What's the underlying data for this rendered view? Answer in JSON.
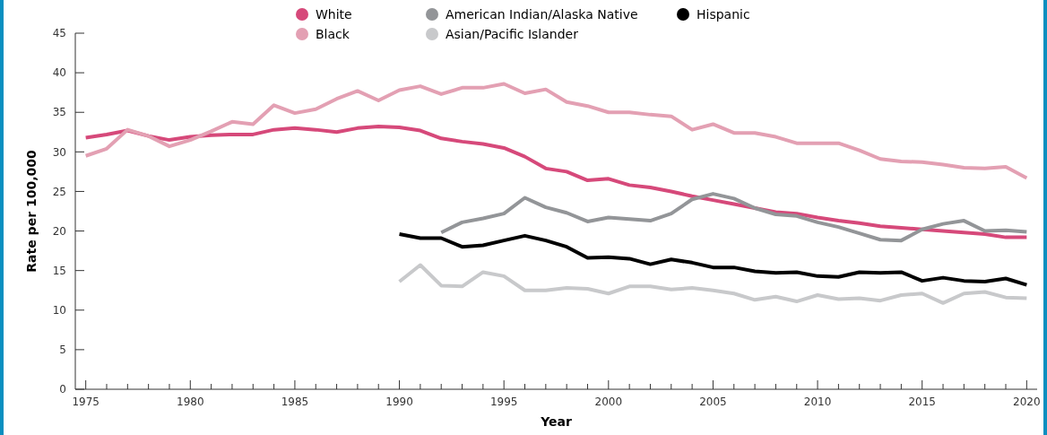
{
  "chart_data": {
    "type": "line",
    "xlabel": "Year",
    "ylabel": "Rate per 100,000",
    "x": [
      1975,
      1976,
      1977,
      1978,
      1979,
      1980,
      1981,
      1982,
      1983,
      1984,
      1985,
      1986,
      1987,
      1988,
      1989,
      1990,
      1991,
      1992,
      1993,
      1994,
      1995,
      1996,
      1997,
      1998,
      1999,
      2000,
      2001,
      2002,
      2003,
      2004,
      2005,
      2006,
      2007,
      2008,
      2009,
      2010,
      2011,
      2012,
      2013,
      2014,
      2015,
      2016,
      2017,
      2018,
      2019,
      2020
    ],
    "series": [
      {
        "name": "White",
        "color": "#d6497a",
        "values": [
          31.8,
          32.2,
          32.7,
          32.0,
          31.5,
          31.9,
          32.1,
          32.2,
          32.2,
          32.8,
          33.0,
          32.8,
          32.5,
          33.0,
          33.2,
          33.1,
          32.7,
          31.7,
          31.3,
          31.0,
          30.5,
          29.4,
          27.9,
          27.5,
          26.4,
          26.6,
          25.8,
          25.5,
          25.0,
          24.4,
          23.9,
          23.4,
          22.9,
          22.4,
          22.2,
          21.7,
          21.3,
          21.0,
          20.6,
          20.4,
          20.2,
          20.0,
          19.8,
          19.6,
          19.2,
          19.2
        ]
      },
      {
        "name": "Black",
        "color": "#e3a0b3",
        "values": [
          29.5,
          30.4,
          32.8,
          32.0,
          30.7,
          31.5,
          32.6,
          33.8,
          33.5,
          35.9,
          34.9,
          35.4,
          36.7,
          37.7,
          36.5,
          37.8,
          38.3,
          37.3,
          38.1,
          38.1,
          38.6,
          37.4,
          37.9,
          36.3,
          35.8,
          35.0,
          35.0,
          34.7,
          34.5,
          32.8,
          33.5,
          32.4,
          32.4,
          31.9,
          31.1,
          31.1,
          31.1,
          30.2,
          29.1,
          28.8,
          28.7,
          28.4,
          28.0,
          27.9,
          28.1,
          26.7
        ]
      },
      {
        "name": "American Indian/Alaska Native",
        "color": "#939598",
        "values": [
          null,
          null,
          null,
          null,
          null,
          null,
          null,
          null,
          null,
          null,
          null,
          null,
          null,
          null,
          null,
          null,
          null,
          19.8,
          21.1,
          21.6,
          22.2,
          24.2,
          23.0,
          22.3,
          21.2,
          21.7,
          21.5,
          21.3,
          22.2,
          24.0,
          24.7,
          24.1,
          22.9,
          22.1,
          21.9,
          21.1,
          20.5,
          19.7,
          18.9,
          18.8,
          20.2,
          20.9,
          21.3,
          20.0,
          20.1,
          19.9
        ]
      },
      {
        "name": "Asian/Pacific Islander",
        "color": "#c8c9cb",
        "values": [
          null,
          null,
          null,
          null,
          null,
          null,
          null,
          null,
          null,
          null,
          null,
          null,
          null,
          null,
          null,
          13.6,
          15.7,
          13.1,
          13.0,
          14.8,
          14.3,
          12.5,
          12.5,
          12.8,
          12.7,
          12.1,
          13.0,
          13.0,
          12.6,
          12.8,
          12.5,
          12.1,
          11.3,
          11.7,
          11.1,
          11.9,
          11.4,
          11.5,
          11.2,
          11.9,
          12.1,
          10.9,
          12.1,
          12.3,
          11.6,
          11.5
        ]
      },
      {
        "name": "Hispanic",
        "color": "#000000",
        "values": [
          null,
          null,
          null,
          null,
          null,
          null,
          null,
          null,
          null,
          null,
          null,
          null,
          null,
          null,
          null,
          19.6,
          19.1,
          19.1,
          18.0,
          18.2,
          18.8,
          19.4,
          18.8,
          18.0,
          16.6,
          16.7,
          16.5,
          15.8,
          16.4,
          16.0,
          15.4,
          15.4,
          14.9,
          14.7,
          14.8,
          14.3,
          14.2,
          14.8,
          14.7,
          14.8,
          13.7,
          14.1,
          13.7,
          13.6,
          14.0,
          13.2
        ]
      }
    ],
    "xlim": [
      1974.5,
      2020.5
    ],
    "xticks": [
      {
        "value": 1975,
        "label": "1975"
      },
      {
        "value": 1976,
        "label": null
      },
      {
        "value": 1977,
        "label": null
      },
      {
        "value": 1978,
        "label": null
      },
      {
        "value": 1979,
        "label": null
      },
      {
        "value": 1980,
        "label": "1980"
      },
      {
        "value": 1981,
        "label": null
      },
      {
        "value": 1982,
        "label": null
      },
      {
        "value": 1983,
        "label": null
      },
      {
        "value": 1984,
        "label": null
      },
      {
        "value": 1985,
        "label": "1985"
      },
      {
        "value": 1986,
        "label": null
      },
      {
        "value": 1987,
        "label": null
      },
      {
        "value": 1988,
        "label": null
      },
      {
        "value": 1989,
        "label": null
      },
      {
        "value": 1990,
        "label": "1990"
      },
      {
        "value": 1991,
        "label": null
      },
      {
        "value": 1992,
        "label": null
      },
      {
        "value": 1993,
        "label": null
      },
      {
        "value": 1994,
        "label": null
      },
      {
        "value": 1995,
        "label": "1995"
      },
      {
        "value": 1996,
        "label": null
      },
      {
        "value": 1997,
        "label": null
      },
      {
        "value": 1998,
        "label": null
      },
      {
        "value": 1999,
        "label": null
      },
      {
        "value": 2000,
        "label": "2000"
      },
      {
        "value": 2001,
        "label": null
      },
      {
        "value": 2002,
        "label": null
      },
      {
        "value": 2003,
        "label": null
      },
      {
        "value": 2004,
        "label": null
      },
      {
        "value": 2005,
        "label": "2005"
      },
      {
        "value": 2006,
        "label": null
      },
      {
        "value": 2007,
        "label": null
      },
      {
        "value": 2008,
        "label": null
      },
      {
        "value": 2009,
        "label": null
      },
      {
        "value": 2010,
        "label": "2010"
      },
      {
        "value": 2011,
        "label": null
      },
      {
        "value": 2012,
        "label": null
      },
      {
        "value": 2013,
        "label": null
      },
      {
        "value": 2014,
        "label": null
      },
      {
        "value": 2015,
        "label": "2015"
      },
      {
        "value": 2016,
        "label": null
      },
      {
        "value": 2017,
        "label": null
      },
      {
        "value": 2018,
        "label": null
      },
      {
        "value": 2019,
        "label": null
      },
      {
        "value": 2020,
        "label": "2020"
      }
    ],
    "ylim": [
      0,
      45
    ],
    "yticks": [
      0,
      5,
      10,
      15,
      20,
      25,
      30,
      35,
      40,
      45
    ],
    "legend": "top",
    "marker": "none",
    "line_style": "solid"
  }
}
